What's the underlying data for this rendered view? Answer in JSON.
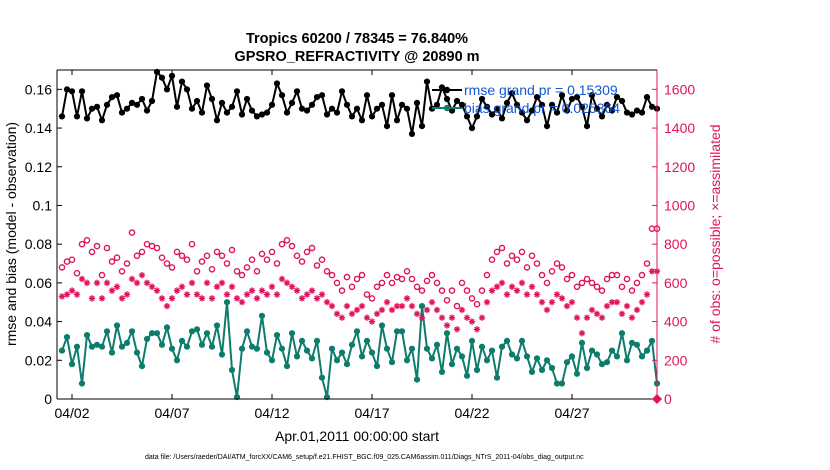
{
  "chart_data": {
    "type": "line",
    "title": "Tropics 60200 / 78345 = 76.840%",
    "subtitle": "GPSRO_REFRACTIVITY @ 20890 m",
    "xlabel": "Apr.01,2011 00:00:00 start",
    "ylabel": "rmse and bias (model - observation)",
    "y2label": "# of obs: o=possible; ×=assimilated",
    "footer": "data file: /Users/raeder/DAI/ATM_forcXX/CAM6_setup/f.e21.FHIST_BGC.f09_025.CAM6assim.011/Diags_NTrS_2011-04/obs_diag_output.nc",
    "x_ticks": [
      "04/02",
      "04/07",
      "04/12",
      "04/17",
      "04/22",
      "04/27"
    ],
    "x_tick_days": [
      2,
      7,
      12,
      17,
      22,
      27
    ],
    "xlim": [
      1.25,
      31.25
    ],
    "y_ticks": [
      "0",
      "0.02",
      "0.04",
      "0.06",
      "0.08",
      "0.1",
      "0.12",
      "0.14",
      "0.16"
    ],
    "ylim": [
      0,
      0.17
    ],
    "y2_ticks": [
      "0",
      "200",
      "400",
      "600",
      "800",
      "1000",
      "1200",
      "1400",
      "1600"
    ],
    "y2lim": [
      0,
      1700
    ],
    "step_days": 0.25,
    "start_day": 1.5,
    "legend": {
      "location": "top-right",
      "entries": [
        {
          "label": "rmse grand pr = 0.15309",
          "color": "#000000"
        },
        {
          "label": "bias grand pr = 0.025364",
          "color": "#0e7c6d"
        }
      ]
    },
    "colors": {
      "rmse": "#000000",
      "bias": "#0e7c6d",
      "obs": "#e0135f",
      "legend_text": "#1457d6"
    },
    "series": [
      {
        "name": "rmse",
        "axis": "left",
        "values": [
          0.146,
          0.16,
          0.159,
          0.146,
          0.159,
          0.145,
          0.15,
          0.151,
          0.144,
          0.152,
          0.156,
          0.157,
          0.148,
          0.15,
          0.153,
          0.152,
          0.155,
          0.149,
          0.154,
          0.169,
          0.166,
          0.16,
          0.167,
          0.151,
          0.164,
          0.16,
          0.15,
          0.154,
          0.148,
          0.162,
          0.155,
          0.144,
          0.153,
          0.148,
          0.151,
          0.159,
          0.147,
          0.155,
          0.149,
          0.146,
          0.147,
          0.148,
          0.152,
          0.163,
          0.157,
          0.148,
          0.153,
          0.159,
          0.15,
          0.149,
          0.152,
          0.156,
          0.157,
          0.147,
          0.15,
          0.148,
          0.159,
          0.152,
          0.146,
          0.15,
          0.144,
          0.157,
          0.146,
          0.15,
          0.152,
          0.141,
          0.157,
          0.144,
          0.152,
          0.15,
          0.137,
          0.153,
          0.141,
          0.164,
          0.15,
          0.152,
          0.161,
          0.155,
          0.149,
          0.154,
          0.152,
          0.146,
          0.14,
          0.146,
          0.155,
          0.151,
          0.147,
          0.15,
          0.145,
          0.153,
          0.158,
          0.152,
          0.148,
          0.144,
          0.149,
          0.156,
          0.152,
          0.141,
          0.152,
          0.148,
          0.157,
          0.149,
          0.155,
          0.156,
          0.151,
          0.141,
          0.157,
          0.15,
          0.146,
          0.152,
          0.149,
          0.156,
          0.154,
          0.148,
          0.147,
          0.149,
          0.148,
          0.156,
          0.151,
          0.15
        ]
      },
      {
        "name": "bias",
        "axis": "left",
        "values": [
          0.025,
          0.032,
          0.018,
          0.027,
          0.008,
          0.033,
          0.027,
          0.028,
          0.027,
          0.035,
          0.024,
          0.038,
          0.027,
          0.029,
          0.035,
          0.024,
          0.017,
          0.031,
          0.034,
          0.034,
          0.028,
          0.037,
          0.026,
          0.02,
          0.03,
          0.027,
          0.035,
          0.036,
          0.028,
          0.034,
          0.027,
          0.038,
          0.023,
          0.05,
          0.015,
          0.001,
          0.026,
          0.035,
          0.027,
          0.026,
          0.043,
          0.024,
          0.02,
          0.033,
          0.026,
          0.017,
          0.034,
          0.022,
          0.03,
          0.025,
          0.021,
          0.03,
          0.011,
          0.001,
          0.026,
          0.02,
          0.024,
          0.018,
          0.028,
          0.035,
          0.022,
          0.03,
          0.024,
          0.017,
          0.038,
          0.026,
          0.019,
          0.035,
          0.035,
          0.02,
          0.026,
          0.01,
          0.048,
          0.026,
          0.021,
          0.028,
          0.014,
          0.034,
          0.018,
          0.026,
          0.022,
          0.012,
          0.03,
          0.015,
          0.027,
          0.02,
          0.025,
          0.011,
          0.027,
          0.03,
          0.023,
          0.021,
          0.03,
          0.022,
          0.014,
          0.021,
          0.015,
          0.02,
          0.016,
          0.008,
          0.008,
          0.019,
          0.022,
          0.013,
          0.029,
          0.016,
          0.025,
          0.023,
          0.018,
          0.019,
          0.025,
          0.022,
          0.034,
          0.02,
          0.029,
          0.028,
          0.022,
          0.025,
          0.03,
          0.008
        ]
      },
      {
        "name": "possible",
        "axis": "right",
        "marker": "o",
        "values": [
          680,
          710,
          720,
          650,
          800,
          820,
          760,
          790,
          640,
          780,
          710,
          730,
          660,
          700,
          860,
          740,
          760,
          800,
          790,
          780,
          730,
          700,
          680,
          760,
          740,
          720,
          800,
          660,
          710,
          740,
          670,
          760,
          740,
          700,
          770,
          660,
          640,
          680,
          720,
          660,
          750,
          720,
          760,
          700,
          800,
          820,
          790,
          740,
          710,
          760,
          780,
          690,
          720,
          660,
          640,
          600,
          560,
          630,
          580,
          620,
          640,
          540,
          520,
          580,
          600,
          640,
          600,
          630,
          620,
          660,
          620,
          580,
          560,
          610,
          640,
          600,
          560,
          510,
          560,
          480,
          600,
          560,
          520,
          490,
          560,
          640,
          720,
          760,
          780,
          700,
          740,
          720,
          760,
          680,
          740,
          700,
          640,
          600,
          660,
          700,
          680,
          620,
          640,
          580,
          600,
          620,
          600,
          580,
          560,
          620,
          640,
          640,
          580,
          620,
          560,
          600,
          640,
          700,
          880,
          880
        ]
      },
      {
        "name": "assimilated",
        "axis": "right",
        "marker": "*",
        "values": [
          530,
          540,
          560,
          540,
          620,
          600,
          520,
          600,
          520,
          600,
          560,
          580,
          520,
          540,
          620,
          600,
          640,
          600,
          580,
          560,
          520,
          480,
          520,
          560,
          580,
          540,
          600,
          540,
          520,
          600,
          520,
          580,
          600,
          540,
          580,
          520,
          500,
          540,
          560,
          520,
          560,
          540,
          580,
          540,
          620,
          600,
          580,
          560,
          520,
          540,
          560,
          520,
          540,
          500,
          480,
          440,
          420,
          480,
          440,
          460,
          480,
          420,
          400,
          440,
          460,
          500,
          460,
          480,
          480,
          520,
          480,
          440,
          420,
          460,
          500,
          460,
          420,
          380,
          420,
          360,
          460,
          420,
          400,
          360,
          420,
          500,
          560,
          580,
          600,
          540,
          580,
          560,
          600,
          540,
          580,
          540,
          500,
          460,
          500,
          540,
          520,
          480,
          500,
          420,
          340,
          420,
          460,
          440,
          420,
          480,
          500,
          500,
          440,
          480,
          420,
          460,
          500,
          540,
          660,
          660
        ]
      }
    ]
  }
}
